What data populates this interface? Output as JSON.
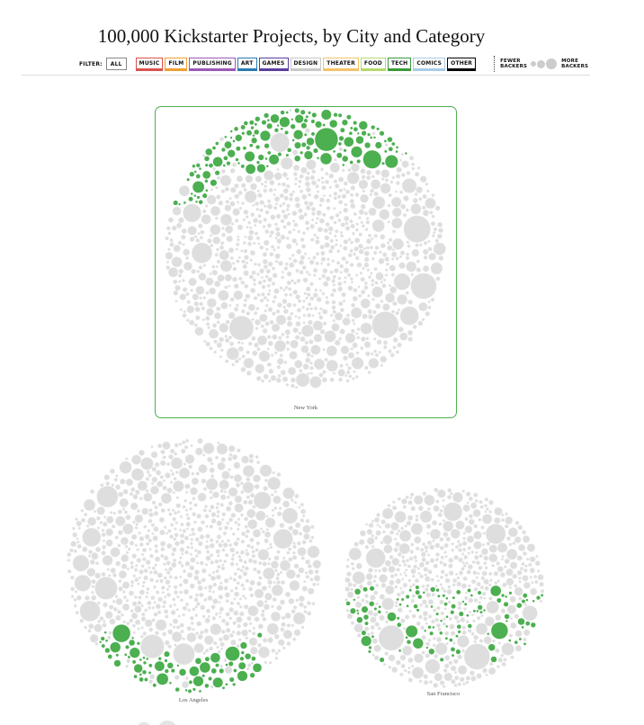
{
  "title": "100,000 Kickstarter Projects, by City and Category",
  "filter": {
    "label": "FILTER:",
    "all": "ALL",
    "buttons": [
      {
        "label": "MUSIC",
        "color": "#d9534f"
      },
      {
        "label": "FILM",
        "color": "#f0a030"
      },
      {
        "label": "PUBLISHING",
        "color": "#9b59b6"
      },
      {
        "label": "ART",
        "color": "#2a7ab0"
      },
      {
        "label": "GAMES",
        "color": "#5b3f9e"
      },
      {
        "label": "DESIGN",
        "color": "#c8c8c8"
      },
      {
        "label": "THEATER",
        "color": "#f5c26b"
      },
      {
        "label": "FOOD",
        "color": "#b5d96b"
      },
      {
        "label": "TECH",
        "color": "#3a9a3a"
      },
      {
        "label": "COMICS",
        "color": "#a8cce8"
      },
      {
        "label": "OTHER",
        "color": "#000000"
      }
    ],
    "active": "TECH"
  },
  "legend": {
    "fewer": "FEWER BACKERS",
    "more": "MORE BACKERS"
  },
  "colors": {
    "highlight": "#4caf50",
    "base": "#dedede"
  },
  "chart_data": {
    "type": "bubble",
    "title": "100,000 Kickstarter Projects, by City and Category",
    "highlighted_category": "TECH",
    "cities": [
      {
        "name": "New York",
        "selected": true,
        "highlight_region": "top-left rim"
      },
      {
        "name": "Los Angeles",
        "selected": false,
        "highlight_region": "bottom rim"
      },
      {
        "name": "San Francisco",
        "selected": false,
        "highlight_region": "lower-middle band"
      }
    ]
  }
}
